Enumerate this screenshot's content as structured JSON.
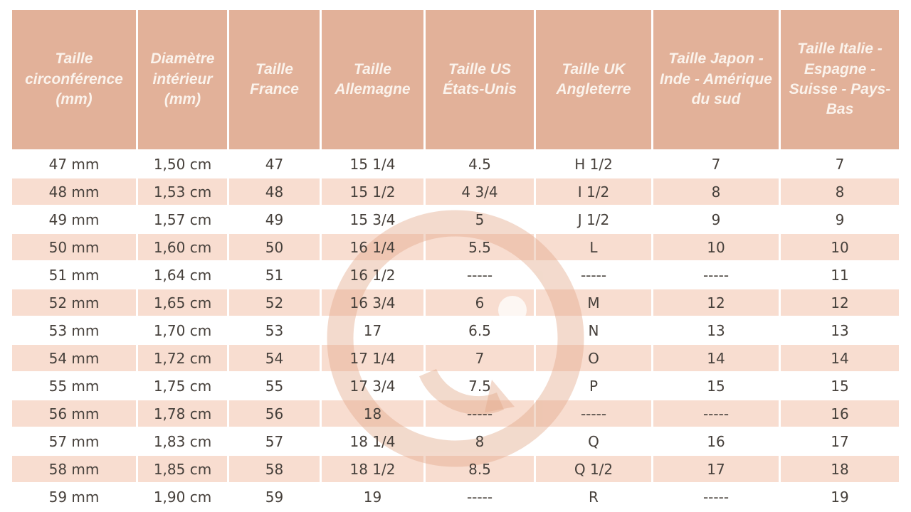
{
  "table": {
    "columns": [
      {
        "label": "Taille circonférence (mm)"
      },
      {
        "label": "Diamètre intérieur (mm)"
      },
      {
        "label": "Taille France"
      },
      {
        "label": "Taille Allemagne"
      },
      {
        "label": "Taille US États-Unis"
      },
      {
        "label": "Taille UK Angleterre"
      },
      {
        "label": "Taille Japon - Inde - Amérique du sud"
      },
      {
        "label": "Taille Italie - Espagne - Suisse - Pays-Bas"
      }
    ],
    "rows": [
      [
        "47 mm",
        "1,50 cm",
        "47",
        "15 1/4",
        "4.5",
        "H 1/2",
        "7",
        "7"
      ],
      [
        "48 mm",
        "1,53 cm",
        "48",
        "15 1/2",
        "4 3/4",
        "I 1/2",
        "8",
        "8"
      ],
      [
        "49 mm",
        "1,57 cm",
        "49",
        "15 3/4",
        "5",
        "J 1/2",
        "9",
        "9"
      ],
      [
        "50 mm",
        "1,60 cm",
        "50",
        "16 1/4",
        "5.5",
        "L",
        "10",
        "10"
      ],
      [
        "51 mm",
        "1,64 cm",
        "51",
        "16 1/2",
        "-----",
        "-----",
        "-----",
        "11"
      ],
      [
        "52 mm",
        "1,65 cm",
        "52",
        "16 3/4",
        "6",
        "M",
        "12",
        "12"
      ],
      [
        "53 mm",
        "1,70 cm",
        "53",
        "17",
        "6.5",
        "N",
        "13",
        "13"
      ],
      [
        "54 mm",
        "1,72 cm",
        "54",
        "17 1/4",
        "7",
        "O",
        "14",
        "14"
      ],
      [
        "55 mm",
        "1,75 cm",
        "55",
        "17 3/4",
        "7.5",
        "P",
        "15",
        "15"
      ],
      [
        "56 mm",
        "1,78 cm",
        "56",
        "18",
        "-----",
        "-----",
        "-----",
        "16"
      ],
      [
        "57 mm",
        "1,83 cm",
        "57",
        "18 1/4",
        "8",
        "Q",
        "16",
        "17"
      ],
      [
        "58 mm",
        "1,85 cm",
        "58",
        "18 1/2",
        "8.5",
        "Q 1/2",
        "17",
        "18"
      ],
      [
        "59 mm",
        "1,90 cm",
        "59",
        "19",
        "-----",
        "R",
        "-----",
        "19"
      ]
    ],
    "empty_marker": "-----"
  },
  "watermark": {
    "icon": "g-ring-logo-watermark"
  },
  "colors": {
    "header_bg": "#e2b199",
    "header_text": "#fbf3ec",
    "row_bg": "#ffffff",
    "row_alt_bg": "#f8ddd0",
    "body_text": "#46403b",
    "watermark": "#e2a888"
  }
}
